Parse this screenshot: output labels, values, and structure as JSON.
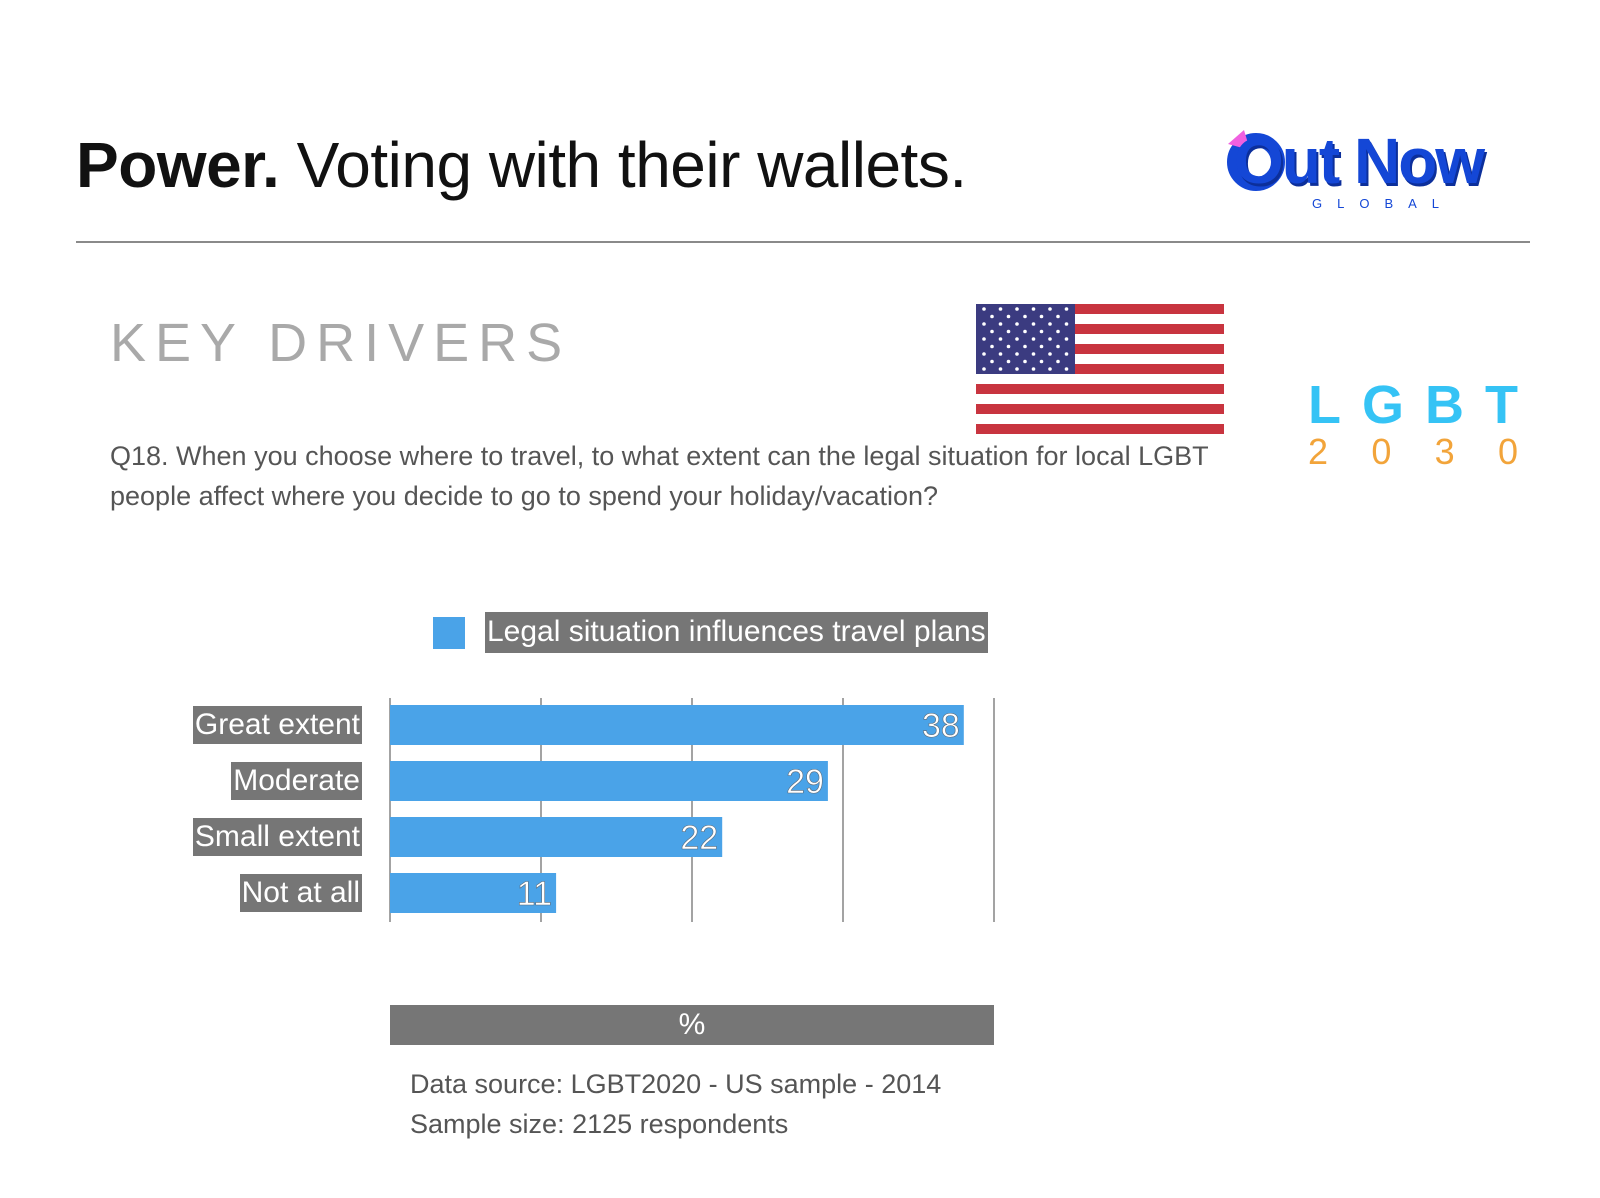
{
  "header": {
    "title_bold": "Power.",
    "title_rest": " Voting with their wallets.",
    "logo": {
      "text": "Out Now",
      "subtext": "GLOBAL"
    }
  },
  "section": {
    "heading": "KEY DRIVERS"
  },
  "badge": {
    "letters": [
      "L",
      "G",
      "B",
      "T"
    ],
    "digits": [
      "2",
      "0",
      "3",
      "0"
    ]
  },
  "question": "Q18. When you choose where to travel, to what extent can the legal situation for local LGBT people affect where you decide to go to spend your holiday/vacation?",
  "colors": {
    "bar": "#4aa3e8",
    "label_bg": "#767676",
    "grid": "#666666"
  },
  "chart_data": {
    "type": "bar",
    "orientation": "horizontal",
    "categories": [
      "Great extent",
      "Moderate",
      "Small extent",
      "Not at all"
    ],
    "series": [
      {
        "name": "Legal situation influences travel plans",
        "values": [
          38,
          29,
          22,
          11
        ]
      }
    ],
    "xlabel": "%",
    "xlim": [
      0,
      40
    ],
    "grid": true,
    "legend": "top"
  },
  "footnote": {
    "line1": "Data source: LGBT2020 - US sample - 2014",
    "line2": "Sample size: 2125 respondents"
  }
}
